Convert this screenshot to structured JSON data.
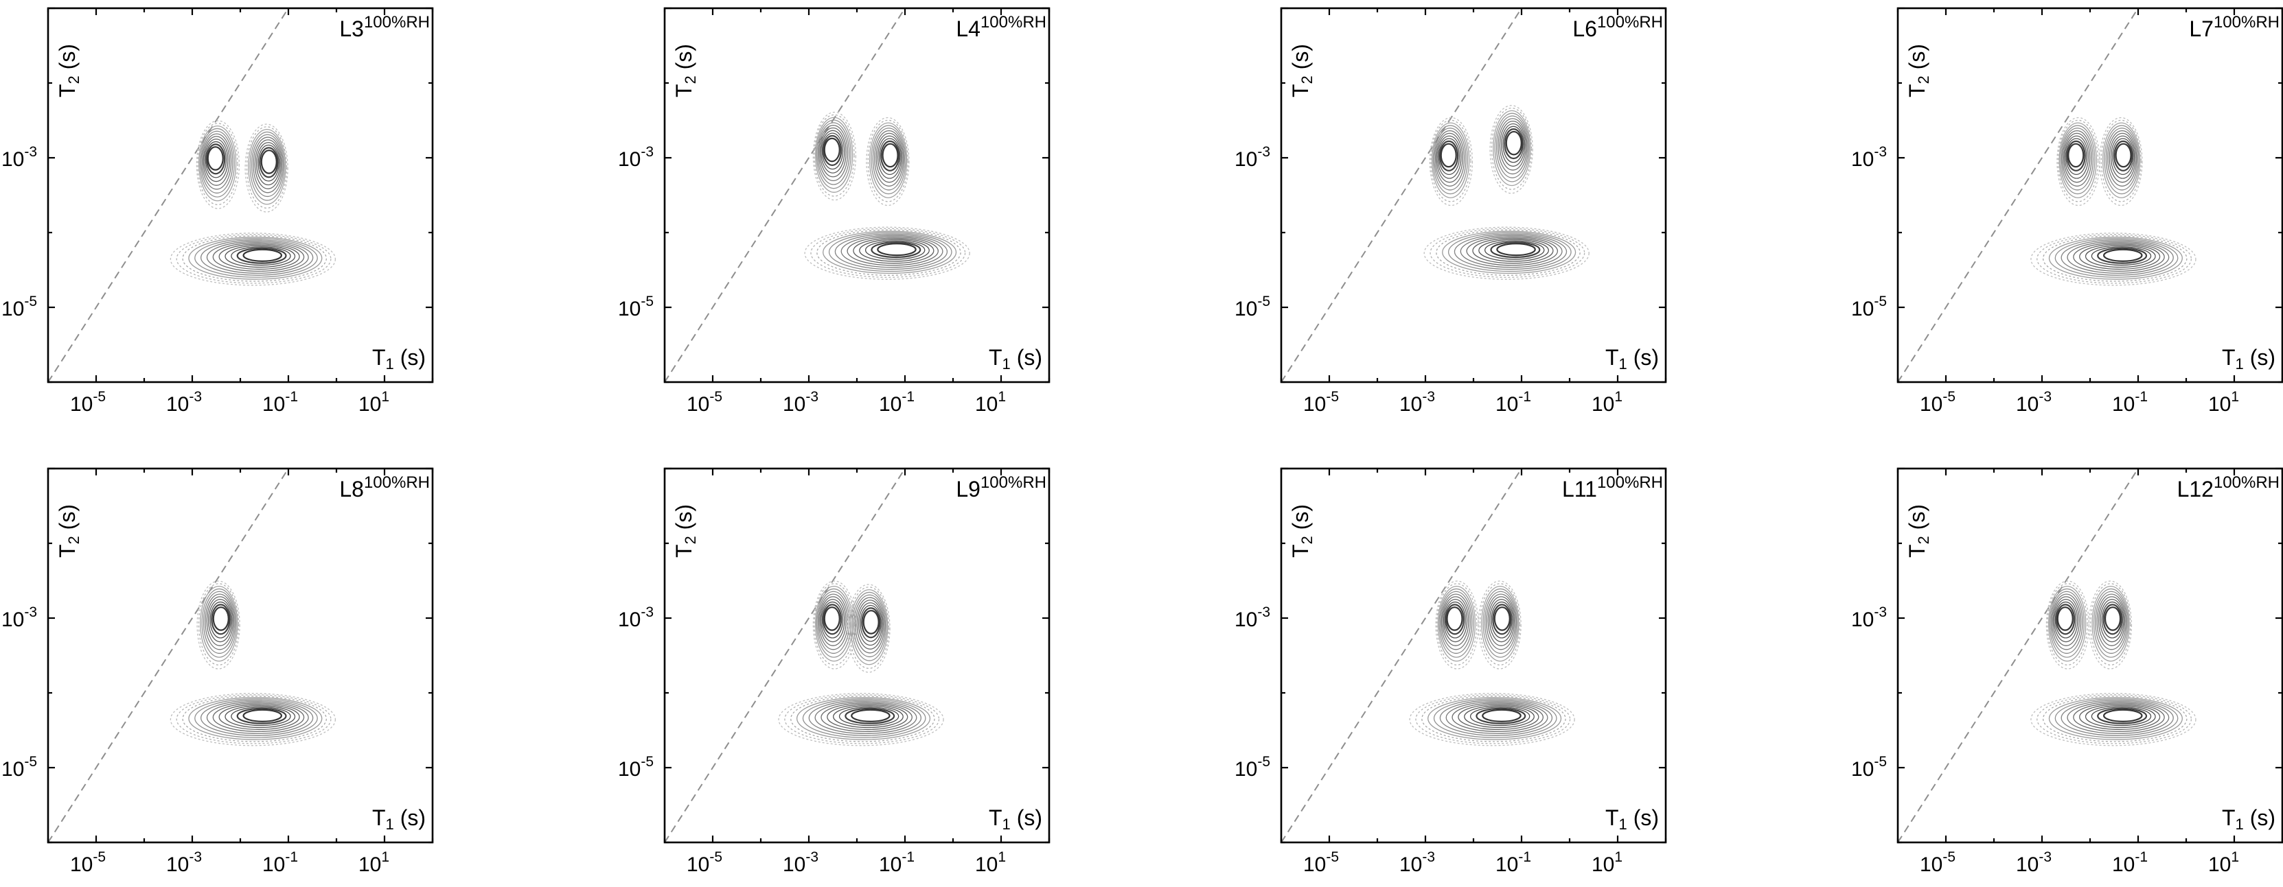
{
  "axes": {
    "x_title_main": "T",
    "x_title_sub": "1",
    "x_title_unit": " (s)",
    "y_title_main": "T",
    "y_title_sub": "2",
    "y_title_unit": " (s)",
    "tick_base": "10",
    "x_ticks": [
      "-5",
      "-3",
      "-1",
      "1"
    ],
    "y_ticks": [
      "-3",
      "-5"
    ]
  },
  "chart_data": [
    {
      "type": "contour",
      "title": "L3",
      "title_sup": "100%RH",
      "xscale": "log",
      "yscale": "log",
      "xlim": [
        1e-06,
        100
      ],
      "ylim": [
        1e-06,
        0.1
      ],
      "diagonal": "T2 = T1 (dashed)",
      "peaks": [
        {
          "T1": 0.003,
          "T2": 0.001
        },
        {
          "T1": 0.04,
          "T2": 0.0009
        },
        {
          "T1": 0.03,
          "T2": 5e-05
        }
      ]
    },
    {
      "type": "contour",
      "title": "L4",
      "title_sup": "100%RH",
      "xscale": "log",
      "yscale": "log",
      "xlim": [
        1e-06,
        100
      ],
      "ylim": [
        1e-06,
        0.1
      ],
      "diagonal": "T2 = T1 (dashed)",
      "peaks": [
        {
          "T1": 0.003,
          "T2": 0.0013
        },
        {
          "T1": 0.05,
          "T2": 0.0011
        },
        {
          "T1": 0.07,
          "T2": 6e-05
        }
      ]
    },
    {
      "type": "contour",
      "title": "L6",
      "title_sup": "100%RH",
      "xscale": "log",
      "yscale": "log",
      "xlim": [
        1e-06,
        100
      ],
      "ylim": [
        1e-06,
        0.1
      ],
      "diagonal": "T2 = T1 (dashed)",
      "peaks": [
        {
          "T1": 0.003,
          "T2": 0.0011
        },
        {
          "T1": 0.07,
          "T2": 0.0016
        },
        {
          "T1": 0.08,
          "T2": 6e-05
        }
      ]
    },
    {
      "type": "contour",
      "title": "L7",
      "title_sup": "100%RH",
      "xscale": "log",
      "yscale": "log",
      "xlim": [
        1e-06,
        100
      ],
      "ylim": [
        1e-06,
        0.1
      ],
      "diagonal": "T2 = T1 (dashed)",
      "peaks": [
        {
          "T1": 0.005,
          "T2": 0.0011
        },
        {
          "T1": 0.05,
          "T2": 0.0011
        },
        {
          "T1": 0.05,
          "T2": 5e-05
        }
      ]
    },
    {
      "type": "contour",
      "title": "L8",
      "title_sup": "100%RH",
      "xscale": "log",
      "yscale": "log",
      "xlim": [
        1e-06,
        100
      ],
      "ylim": [
        1e-06,
        0.1
      ],
      "diagonal": "T2 = T1 (dashed)",
      "peaks": [
        {
          "T1": 0.004,
          "T2": 0.001
        },
        {
          "T1": 0.03,
          "T2": 5e-05
        }
      ]
    },
    {
      "type": "contour",
      "title": "L9",
      "title_sup": "100%RH",
      "xscale": "log",
      "yscale": "log",
      "xlim": [
        1e-06,
        100
      ],
      "ylim": [
        1e-06,
        0.1
      ],
      "diagonal": "T2 = T1 (dashed)",
      "peaks": [
        {
          "T1": 0.003,
          "T2": 0.001
        },
        {
          "T1": 0.02,
          "T2": 0.0009
        },
        {
          "T1": 0.02,
          "T2": 5e-05
        }
      ]
    },
    {
      "type": "contour",
      "title": "L11",
      "title_sup": "100%RH",
      "xscale": "log",
      "yscale": "log",
      "xlim": [
        1e-06,
        100
      ],
      "ylim": [
        1e-06,
        0.1
      ],
      "diagonal": "T2 = T1 (dashed)",
      "peaks": [
        {
          "T1": 0.004,
          "T2": 0.001
        },
        {
          "T1": 0.04,
          "T2": 0.001
        },
        {
          "T1": 0.04,
          "T2": 5e-05
        }
      ]
    },
    {
      "type": "contour",
      "title": "L12",
      "title_sup": "100%RH",
      "xscale": "log",
      "yscale": "log",
      "xlim": [
        1e-06,
        100
      ],
      "ylim": [
        1e-06,
        0.1
      ],
      "diagonal": "T2 = T1 (dashed)",
      "peaks": [
        {
          "T1": 0.003,
          "T2": 0.001
        },
        {
          "T1": 0.03,
          "T2": 0.001
        },
        {
          "T1": 0.05,
          "T2": 5e-05
        }
      ]
    }
  ]
}
